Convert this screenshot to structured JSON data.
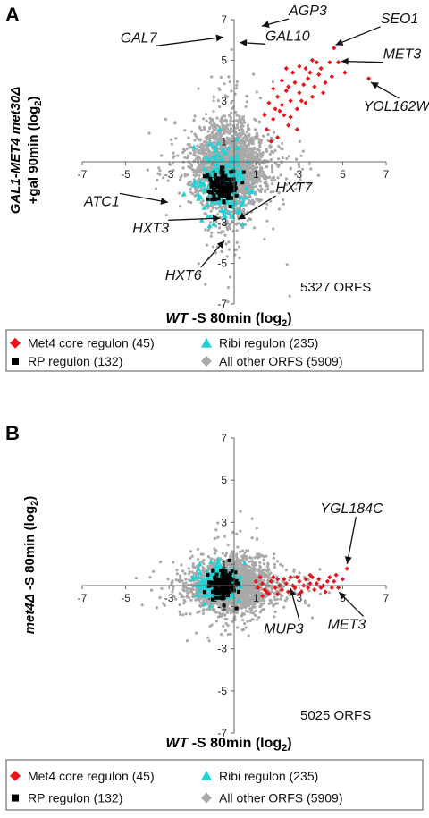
{
  "chart_data": [
    {
      "type": "scatter",
      "panel_letter": "A",
      "xlabel": "WT -S 80min (log2)",
      "xlabel_parts": {
        "italic": "WT",
        "rest": " -S 80min (log",
        "sub": "2",
        "close": ")"
      },
      "ylabel_line1": {
        "italic": "GAL1-MET4 met30Δ"
      },
      "ylabel_line2": {
        "rest": "+gal 90min (log",
        "sub": "2",
        "close": ")"
      },
      "xlim": [
        -7,
        7
      ],
      "ylim": [
        -7,
        7
      ],
      "xticks": [
        "-7",
        "-5",
        "-3",
        "-1",
        "1",
        "3",
        "5",
        "7"
      ],
      "yticks": [
        "7",
        "5",
        "3",
        "1",
        "-1",
        "-3",
        "-5",
        "-7"
      ],
      "orf_count_label": "5327 ORFS",
      "annotations": [
        {
          "label": "GAL7",
          "x": -0.3,
          "y": 5.8
        },
        {
          "label": "GAL10",
          "x": 0.2,
          "y": 5.8
        },
        {
          "label": "AGP3",
          "x": 1.2,
          "y": 6.6
        },
        {
          "label": "SEO1",
          "x": 4.6,
          "y": 5.6
        },
        {
          "label": "MET3",
          "x": 4.8,
          "y": 4.9
        },
        {
          "label": "YOL162W",
          "x": 6.2,
          "y": 4.1
        },
        {
          "label": "ATC1",
          "x": -2.8,
          "y": -2.0
        },
        {
          "label": "HXT7",
          "x": 0.1,
          "y": -3.0
        },
        {
          "label": "HXT3",
          "x": -0.4,
          "y": -2.7
        },
        {
          "label": "HXT6",
          "x": -0.3,
          "y": -3.7
        }
      ],
      "series": [
        {
          "name": "Met4 core regulon (45)",
          "color": "#e8141b",
          "marker": "diamond",
          "points": [
            [
              1.6,
              2.9
            ],
            [
              1.8,
              3.6
            ],
            [
              2.0,
              3.2
            ],
            [
              2.2,
              4.0
            ],
            [
              2.4,
              3.5
            ],
            [
              2.1,
              2.5
            ],
            [
              2.7,
              4.4
            ],
            [
              3.0,
              4.7
            ],
            [
              3.2,
              3.8
            ],
            [
              3.5,
              4.4
            ],
            [
              3.9,
              4.3
            ],
            [
              4.2,
              3.9
            ],
            [
              3.6,
              3.2
            ],
            [
              3.0,
              3.4
            ],
            [
              2.6,
              3.0
            ],
            [
              1.8,
              2.1
            ],
            [
              2.3,
              2.3
            ],
            [
              2.9,
              2.6
            ],
            [
              3.3,
              2.9
            ],
            [
              4.6,
              5.6
            ],
            [
              4.8,
              4.9
            ],
            [
              5.1,
              4.4
            ],
            [
              4.4,
              4.9
            ],
            [
              3.8,
              4.9
            ],
            [
              6.2,
              4.1
            ],
            [
              1.5,
              1.6
            ],
            [
              2.5,
              1.8
            ],
            [
              2.0,
              1.2
            ],
            [
              1.7,
              1.0
            ],
            [
              3.7,
              3.7
            ],
            [
              4.0,
              4.6
            ],
            [
              2.8,
              3.9
            ],
            [
              2.2,
              2.8
            ],
            [
              3.4,
              4.1
            ],
            [
              2.6,
              2.2
            ],
            [
              1.9,
              2.6
            ],
            [
              4.5,
              4.2
            ],
            [
              3.1,
              3.0
            ],
            [
              2.4,
              4.6
            ],
            [
              3.6,
              5.0
            ],
            [
              1.4,
              2.3
            ],
            [
              2.9,
              1.6
            ],
            [
              4.1,
              3.4
            ],
            [
              3.3,
              4.6
            ],
            [
              2.5,
              3.7
            ]
          ]
        },
        {
          "name": "Ribi regulon (235)",
          "color": "#1fd3d6",
          "marker": "triangle",
          "count": 235,
          "center": [
            -0.5,
            -1.0
          ],
          "spread": [
            0.55,
            0.9
          ]
        },
        {
          "name": "RP regulon (132)",
          "color": "#000000",
          "marker": "square",
          "count": 132,
          "center": [
            -0.6,
            -1.2
          ],
          "spread": [
            0.35,
            0.35
          ]
        },
        {
          "name": "All other ORFS (5909)",
          "color": "#a9a9a9",
          "marker": "diamond",
          "count": 5909,
          "center": [
            -0.2,
            -0.3
          ],
          "spread": [
            0.75,
            1.0
          ]
        }
      ],
      "legend": [
        {
          "label": "Met4 core regulon (45)",
          "color": "#e8141b",
          "marker": "diamond"
        },
        {
          "label": "Ribi regulon (235)",
          "color": "#1fd3d6",
          "marker": "triangle"
        },
        {
          "label": "RP regulon (132)",
          "color": "#000000",
          "marker": "square"
        },
        {
          "label": "All other ORFS (5909)",
          "color": "#a9a9a9",
          "marker": "diamond"
        }
      ]
    },
    {
      "type": "scatter",
      "panel_letter": "B",
      "xlabel": "WT -S 80min (log2)",
      "xlabel_parts": {
        "italic": "WT",
        "rest": " -S 80min (log",
        "sub": "2",
        "close": ")"
      },
      "ylabel_line1": {
        "italic": "met4Δ",
        "rest": " -S 80min (log",
        "sub": "2",
        "close": ")"
      },
      "xlim": [
        -7,
        7
      ],
      "ylim": [
        -7,
        7
      ],
      "xticks": [
        "-7",
        "-5",
        "-3",
        "-1",
        "1",
        "3",
        "5",
        "7"
      ],
      "yticks": [
        "7",
        "5",
        "3",
        "1",
        "-1",
        "-3",
        "-5",
        "-7"
      ],
      "orf_count_label": "5025 ORFS",
      "annotations": [
        {
          "label": "YGL184C",
          "x": 5.2,
          "y": 0.8
        },
        {
          "label": "MUP3",
          "x": 2.6,
          "y": 0.1
        },
        {
          "label": "MET3",
          "x": 4.8,
          "y": -0.1
        }
      ],
      "series": [
        {
          "name": "Met4 core regulon (45)",
          "color": "#e8141b",
          "marker": "diamond",
          "points": [
            [
              1.1,
              -0.1
            ],
            [
              1.3,
              0.1
            ],
            [
              1.5,
              -0.3
            ],
            [
              1.7,
              0.2
            ],
            [
              1.9,
              -0.1
            ],
            [
              2.0,
              0.3
            ],
            [
              2.2,
              -0.2
            ],
            [
              2.4,
              0.1
            ],
            [
              2.6,
              0.4
            ],
            [
              2.8,
              -0.1
            ],
            [
              3.0,
              0.2
            ],
            [
              3.1,
              -0.3
            ],
            [
              3.3,
              0.3
            ],
            [
              3.5,
              0.1
            ],
            [
              3.7,
              -0.2
            ],
            [
              3.9,
              0.3
            ],
            [
              4.1,
              0.0
            ],
            [
              4.3,
              0.2
            ],
            [
              4.5,
              -0.1
            ],
            [
              4.8,
              -0.1
            ],
            [
              5.2,
              0.8
            ],
            [
              1.2,
              0.4
            ],
            [
              1.6,
              -0.4
            ],
            [
              2.1,
              0.0
            ],
            [
              2.5,
              -0.3
            ],
            [
              2.9,
              0.4
            ],
            [
              3.4,
              -0.1
            ],
            [
              3.6,
              0.4
            ],
            [
              4.0,
              -0.1
            ],
            [
              4.4,
              0.4
            ],
            [
              1.4,
              -0.2
            ],
            [
              1.8,
              0.4
            ],
            [
              2.3,
              0.3
            ],
            [
              2.7,
              0.0
            ],
            [
              3.2,
              0.0
            ],
            [
              3.8,
              0.1
            ],
            [
              4.2,
              -0.3
            ],
            [
              4.6,
              0.2
            ],
            [
              1.0,
              0.2
            ],
            [
              2.0,
              -0.4
            ],
            [
              3.0,
              -0.4
            ],
            [
              3.5,
              0.5
            ],
            [
              4.7,
              0.5
            ],
            [
              5.0,
              0.3
            ],
            [
              1.3,
              -0.5
            ]
          ]
        },
        {
          "name": "Ribi regulon (235)",
          "color": "#1fd3d6",
          "marker": "triangle",
          "count": 235,
          "center": [
            -0.8,
            0.1
          ],
          "spread": [
            0.45,
            0.4
          ]
        },
        {
          "name": "RP regulon (132)",
          "color": "#000000",
          "marker": "square",
          "count": 132,
          "center": [
            -0.5,
            0.0
          ],
          "spread": [
            0.3,
            0.35
          ]
        },
        {
          "name": "All other ORFS (5909)",
          "color": "#a9a9a9",
          "marker": "diamond",
          "count": 5909,
          "center": [
            -0.1,
            0.0
          ],
          "spread": [
            0.8,
            0.55
          ]
        }
      ],
      "legend": [
        {
          "label": "Met4 core regulon (45)",
          "color": "#e8141b",
          "marker": "diamond"
        },
        {
          "label": "Ribi regulon (235)",
          "color": "#1fd3d6",
          "marker": "triangle"
        },
        {
          "label": "RP regulon (132)",
          "color": "#000000",
          "marker": "square"
        },
        {
          "label": "All other ORFS (5909)",
          "color": "#a9a9a9",
          "marker": "diamond"
        }
      ]
    }
  ]
}
